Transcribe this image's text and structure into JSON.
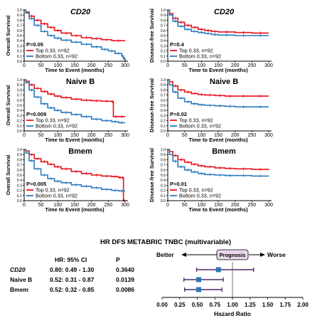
{
  "colors": {
    "top": "#e8121b",
    "bottom": "#2b7bbf",
    "axis": "#000000",
    "forest_marker": "#2e75b6",
    "forest_line": "#4a2a6a",
    "prognosis_box": "#e8d6ea"
  },
  "km_common": {
    "xlabel": "Time to Event (months)",
    "xticks": [
      0,
      50,
      100,
      150,
      200,
      250,
      300
    ],
    "yticks": [
      "0.0",
      "0.1",
      "0.2",
      "0.3",
      "0.4",
      "0.5",
      "0.6",
      "0.7",
      "0.8",
      "0.9",
      "1.0"
    ],
    "legend_top": "Top 0.33, n=92",
    "legend_bottom": "Bottom 0.33, n=92"
  },
  "chart_data": [
    {
      "type": "line",
      "title": "CD20",
      "title_italic": true,
      "ylabel": "Overall Survival",
      "xlabel": "Time to Event (months)",
      "pvalue": "P=0.05",
      "xlim": [
        0,
        310
      ],
      "ylim": [
        0,
        1
      ],
      "series": [
        {
          "name": "Top 0.33, n=92",
          "x": [
            0,
            5,
            15,
            30,
            50,
            70,
            90,
            110,
            140,
            170,
            200,
            230,
            260,
            300
          ],
          "y": [
            1.0,
            0.96,
            0.88,
            0.8,
            0.73,
            0.66,
            0.6,
            0.55,
            0.5,
            0.46,
            0.44,
            0.42,
            0.4,
            0.4
          ]
        },
        {
          "name": "Bottom 0.33, n=92",
          "x": [
            0,
            5,
            15,
            30,
            50,
            70,
            90,
            110,
            140,
            170,
            200,
            230,
            250,
            270,
            290,
            295,
            300
          ],
          "y": [
            1.0,
            0.94,
            0.83,
            0.7,
            0.58,
            0.5,
            0.45,
            0.41,
            0.37,
            0.33,
            0.28,
            0.23,
            0.2,
            0.15,
            0.1,
            0.05,
            0.0
          ]
        }
      ]
    },
    {
      "type": "line",
      "title": "CD20",
      "title_italic": true,
      "ylabel": "Disease-free Survival",
      "xlabel": "Time to Event (months)",
      "pvalue": "P=0.4",
      "xlim": [
        0,
        310
      ],
      "ylim": [
        0,
        1
      ],
      "series": [
        {
          "name": "Top 0.33, n=92",
          "x": [
            0,
            5,
            15,
            30,
            50,
            70,
            90,
            110,
            130,
            150,
            200,
            250,
            300
          ],
          "y": [
            1.0,
            0.93,
            0.84,
            0.76,
            0.7,
            0.66,
            0.62,
            0.6,
            0.58,
            0.57,
            0.56,
            0.55,
            0.55
          ]
        },
        {
          "name": "Bottom 0.33, n=92",
          "x": [
            0,
            5,
            15,
            30,
            50,
            70,
            90,
            110,
            130,
            150,
            200,
            250,
            300
          ],
          "y": [
            1.0,
            0.9,
            0.78,
            0.68,
            0.62,
            0.58,
            0.56,
            0.54,
            0.52,
            0.51,
            0.5,
            0.5,
            0.5
          ]
        }
      ]
    },
    {
      "type": "line",
      "title": "Naive B",
      "title_italic": false,
      "ylabel": "Overall Survival",
      "xlabel": "Time to Event (months)",
      "pvalue": "P=0.009",
      "xlim": [
        0,
        310
      ],
      "ylim": [
        0,
        1
      ],
      "series": [
        {
          "name": "Top 0.33, n=92",
          "x": [
            0,
            5,
            15,
            30,
            50,
            70,
            90,
            110,
            140,
            170,
            200,
            230,
            260,
            265,
            280,
            300
          ],
          "y": [
            1.0,
            0.97,
            0.9,
            0.83,
            0.77,
            0.72,
            0.68,
            0.65,
            0.62,
            0.6,
            0.59,
            0.58,
            0.57,
            0.28,
            0.28,
            0.28
          ]
        },
        {
          "name": "Bottom 0.33, n=92",
          "x": [
            0,
            5,
            15,
            30,
            50,
            70,
            90,
            110,
            140,
            170,
            200,
            230,
            260,
            280,
            300
          ],
          "y": [
            1.0,
            0.94,
            0.8,
            0.66,
            0.53,
            0.45,
            0.4,
            0.36,
            0.32,
            0.28,
            0.23,
            0.2,
            0.18,
            0.16,
            0.16
          ]
        }
      ]
    },
    {
      "type": "line",
      "title": "Naive B",
      "title_italic": false,
      "ylabel": "Disease-free Survival",
      "xlabel": "Time to Event (months)",
      "pvalue": "P=0.02",
      "xlim": [
        0,
        310
      ],
      "ylim": [
        0,
        1
      ],
      "series": [
        {
          "name": "Top 0.33, n=92",
          "x": [
            0,
            5,
            15,
            30,
            50,
            70,
            90,
            110,
            140,
            170,
            200,
            250,
            300
          ],
          "y": [
            1.0,
            0.96,
            0.88,
            0.8,
            0.76,
            0.73,
            0.71,
            0.7,
            0.69,
            0.68,
            0.68,
            0.68,
            0.68
          ]
        },
        {
          "name": "Bottom 0.33, n=92",
          "x": [
            0,
            5,
            15,
            30,
            50,
            70,
            90,
            110,
            140,
            170,
            200,
            250,
            300
          ],
          "y": [
            1.0,
            0.9,
            0.76,
            0.64,
            0.57,
            0.53,
            0.51,
            0.5,
            0.49,
            0.48,
            0.47,
            0.47,
            0.47
          ]
        }
      ]
    },
    {
      "type": "line",
      "title": "Bmem",
      "title_italic": false,
      "ylabel": "Overall Survival",
      "xlabel": "Time to Event (months)",
      "pvalue": "P=0.005",
      "xlim": [
        0,
        310
      ],
      "ylim": [
        0,
        1
      ],
      "series": [
        {
          "name": "Top 0.33, n=92",
          "x": [
            0,
            5,
            15,
            30,
            50,
            70,
            90,
            110,
            140,
            170,
            200,
            230,
            260,
            280,
            290,
            295,
            300
          ],
          "y": [
            1.0,
            0.97,
            0.9,
            0.82,
            0.76,
            0.71,
            0.66,
            0.62,
            0.57,
            0.53,
            0.5,
            0.48,
            0.47,
            0.45,
            0.45,
            0.0,
            0.0
          ]
        },
        {
          "name": "Bottom 0.33, n=92",
          "x": [
            0,
            5,
            15,
            30,
            50,
            70,
            90,
            110,
            140,
            170,
            200,
            230,
            260,
            280,
            300
          ],
          "y": [
            1.0,
            0.93,
            0.78,
            0.62,
            0.5,
            0.43,
            0.38,
            0.35,
            0.31,
            0.28,
            0.25,
            0.22,
            0.2,
            0.19,
            0.19
          ]
        }
      ]
    },
    {
      "type": "line",
      "title": "Bmem",
      "title_italic": false,
      "ylabel": "Disease-free Survival",
      "xlabel": "Time to Event (months)",
      "pvalue": "P=0.01",
      "xlim": [
        0,
        310
      ],
      "ylim": [
        0,
        1
      ],
      "series": [
        {
          "name": "Top 0.33, n=92",
          "x": [
            0,
            5,
            15,
            30,
            50,
            70,
            90,
            110,
            140,
            170,
            200,
            250,
            300
          ],
          "y": [
            1.0,
            0.96,
            0.88,
            0.8,
            0.75,
            0.71,
            0.68,
            0.66,
            0.64,
            0.63,
            0.62,
            0.61,
            0.6
          ]
        },
        {
          "name": "Bottom 0.33, n=92",
          "x": [
            0,
            5,
            15,
            30,
            50,
            70,
            90,
            110,
            140,
            170,
            200,
            250,
            300
          ],
          "y": [
            1.0,
            0.9,
            0.77,
            0.66,
            0.6,
            0.56,
            0.53,
            0.51,
            0.5,
            0.49,
            0.49,
            0.48,
            0.48
          ]
        }
      ]
    },
    {
      "type": "forest",
      "title": "HR DFS METABRIC TNBC (multivariable)",
      "xlabel": "Hazard Ratio",
      "xticks": [
        "0.00",
        "0.25",
        "0.50",
        "0.75",
        "1.00",
        "1.25",
        "1.50",
        "1.75",
        "2.00"
      ],
      "xlim": [
        0,
        2
      ],
      "reference_line": 1.0,
      "better_label": "Better",
      "worse_label": "Worse",
      "prognosis_label": "Prognosis",
      "header_hr": "HR: 95% CI",
      "header_p": "P",
      "rows": [
        {
          "name": "CD20",
          "italic": true,
          "hr_text": "0.80: 0.49 - 1.30",
          "p": "0.3640",
          "hr": 0.8,
          "lo": 0.49,
          "hi": 1.3
        },
        {
          "name": "Naive B",
          "italic": false,
          "hr_text": "0.52: 0.31 - 0.87",
          "p": "0.0139",
          "hr": 0.52,
          "lo": 0.31,
          "hi": 0.87
        },
        {
          "name": "Bmem",
          "italic": false,
          "hr_text": "0.52: 0.32 - 0.85",
          "p": "0.0086",
          "hr": 0.52,
          "lo": 0.32,
          "hi": 0.85
        }
      ]
    }
  ]
}
